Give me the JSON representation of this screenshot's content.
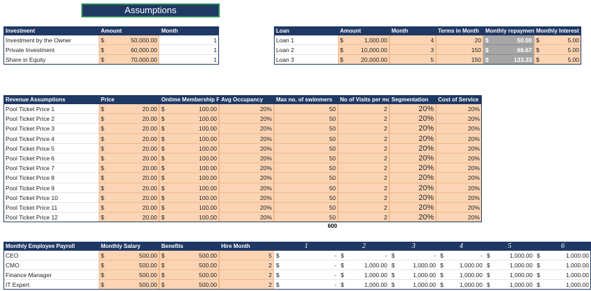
{
  "title": "Assumptions",
  "investment": {
    "headers": [
      "Investment",
      "Amount",
      "Month"
    ],
    "rows": [
      [
        "Investment by the Owner",
        "$",
        "50,000.00",
        "1"
      ],
      [
        "Private Investment",
        "$",
        "60,000.00",
        "1"
      ],
      [
        "Share in Equity",
        "$",
        "70,000.00",
        "1"
      ]
    ]
  },
  "loans": {
    "headers": [
      "Loan",
      "Amount",
      "Month",
      "Terms in Month",
      "Monthly repayment",
      "Monthly Interest"
    ],
    "rows": [
      [
        "Loan 1",
        "$",
        "1,000.00",
        "4",
        "20",
        "$",
        "50.00",
        "$",
        "5.00"
      ],
      [
        "Loan 2",
        "$",
        "10,000.00",
        "3",
        "150",
        "$",
        "66.67",
        "$",
        "5.00"
      ],
      [
        "Loan 3",
        "$",
        "20,000.00",
        "5",
        "150",
        "$",
        "133.33",
        "$",
        "5.00"
      ]
    ]
  },
  "revenue": {
    "headers": [
      "Revenue Assumptions",
      "Price",
      "Ontime Membership Pri",
      "Avg Occupancy",
      "Max no. of swimmers",
      "No of Visits per mon",
      "Segmentation",
      "Cost of Service"
    ],
    "rows": [
      [
        "Pool Ticket Price 1",
        "$",
        "20.00",
        "$",
        "100.00",
        "20%",
        "50",
        "2",
        "20%",
        "20%"
      ],
      [
        "Pool Ticket Price 2",
        "$",
        "20.00",
        "$",
        "100.00",
        "20%",
        "50",
        "2",
        "20%",
        "20%"
      ],
      [
        "Pool Ticket Price 3",
        "$",
        "20.00",
        "$",
        "100.00",
        "20%",
        "50",
        "2",
        "20%",
        "20%"
      ],
      [
        "Pool Ticket Price 4",
        "$",
        "20.00",
        "$",
        "100.00",
        "20%",
        "50",
        "2",
        "20%",
        "20%"
      ],
      [
        "Pool Ticket Price 5",
        "$",
        "20.00",
        "$",
        "100.00",
        "20%",
        "50",
        "2",
        "20%",
        "20%"
      ],
      [
        "Pool Ticket Price 6",
        "$",
        "20.00",
        "$",
        "100.00",
        "20%",
        "50",
        "2",
        "20%",
        "20%"
      ],
      [
        "Pool Ticket Price 7",
        "$",
        "20.00",
        "$",
        "100.00",
        "20%",
        "50",
        "2",
        "20%",
        "20%"
      ],
      [
        "Pool Ticket Price 8",
        "$",
        "20.00",
        "$",
        "100.00",
        "20%",
        "50",
        "2",
        "20%",
        "20%"
      ],
      [
        "Pool Ticket Price 9",
        "$",
        "20.00",
        "$",
        "100.00",
        "20%",
        "50",
        "2",
        "20%",
        "20%"
      ],
      [
        "Pool Ticket Price 10",
        "$",
        "20.00",
        "$",
        "100.00",
        "20%",
        "50",
        "2",
        "20%",
        "20%"
      ],
      [
        "Pool Ticket Price 11",
        "$",
        "20.00",
        "$",
        "100.00",
        "20%",
        "50",
        "2",
        "20%",
        "20%"
      ],
      [
        "Pool Ticket Price 12",
        "$",
        "20.00",
        "$",
        "100.00",
        "20%",
        "50",
        "2",
        "20%",
        "20%"
      ]
    ],
    "total": "600"
  },
  "payroll": {
    "headers": [
      "Monthly Employee Payroll",
      "Monthly Salary",
      "Benefits",
      "Hire Month",
      "1",
      "2",
      "3",
      "4",
      "5",
      "6"
    ],
    "rows": [
      [
        "CEO",
        "$",
        "500.00",
        "$",
        "500.00",
        "5",
        "$",
        "-",
        "$",
        "-",
        "$",
        "-",
        "$",
        "-",
        "$",
        "1,000.00",
        "$",
        "1,000.00"
      ],
      [
        "CMO",
        "$",
        "500.00",
        "$",
        "500.00",
        "2",
        "$",
        "-",
        "$",
        "1,000.00",
        "$",
        "1,000.00",
        "$",
        "1,000.00",
        "$",
        "1,000.00",
        "$",
        "1,000.00"
      ],
      [
        "Finance Manager",
        "$",
        "500.00",
        "$",
        "500.00",
        "2",
        "$",
        "-",
        "$",
        "1,000.00",
        "$",
        "1,000.00",
        "$",
        "1,000.00",
        "$",
        "1,000.00",
        "$",
        "1,000.00"
      ],
      [
        "IT Expert",
        "$",
        "500.00",
        "$",
        "500.00",
        "2",
        "$",
        "-",
        "$",
        "1,000.00",
        "$",
        "1,000.00",
        "$",
        "1,000.00",
        "$",
        "1,000.00",
        "$",
        "1,000.00"
      ]
    ]
  }
}
